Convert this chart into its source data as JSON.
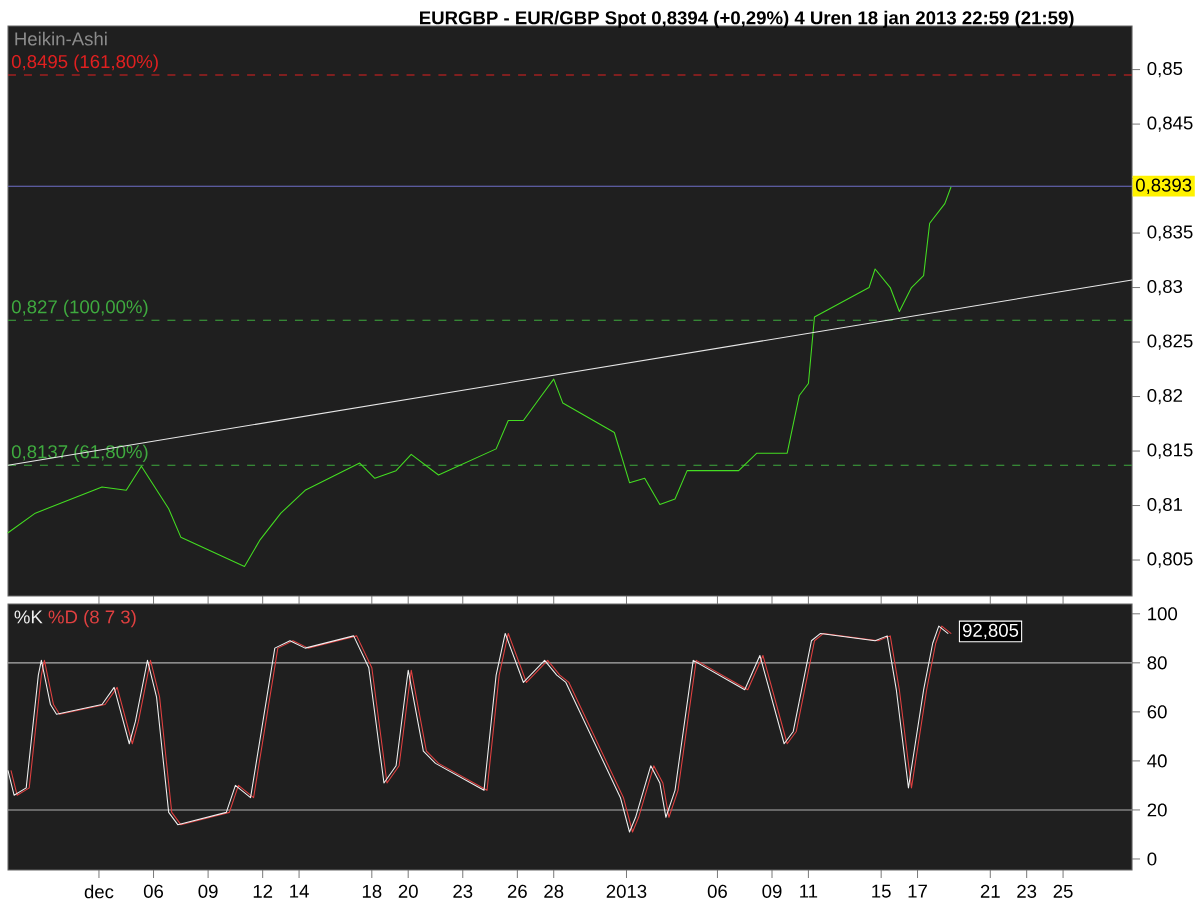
{
  "chart_data": [
    {
      "type": "line",
      "title": "EURGBP - EUR/GBP Spot    0,8394 (+0,29%)    4 Uren  18 jan 2013 22:59 (21:59)",
      "annotations": [
        "Heikin-Ashi"
      ],
      "xlim": [
        "2012-11-28T00:00",
        "2013-01-28T19:00"
      ],
      "ylim": [
        0.8017,
        0.854
      ],
      "xticks": [
        {
          "value": "2012-12-03",
          "label": null
        },
        {
          "value": "2012-12-06",
          "label": null
        },
        {
          "value": "2012-12-09",
          "label": null
        },
        {
          "value": "2012-12-12",
          "label": null
        },
        {
          "value": "2012-12-14",
          "label": null
        },
        {
          "value": "2012-12-18",
          "label": null
        },
        {
          "value": "2012-12-20",
          "label": null
        },
        {
          "value": "2012-12-23",
          "label": null
        },
        {
          "value": "2012-12-26",
          "label": null
        },
        {
          "value": "2012-12-28",
          "label": null
        },
        {
          "value": "2013-01-01",
          "label": null
        },
        {
          "value": "2013-01-06",
          "label": null
        },
        {
          "value": "2013-01-09",
          "label": null
        },
        {
          "value": "2013-01-11",
          "label": null
        },
        {
          "value": "2013-01-15",
          "label": null
        },
        {
          "value": "2013-01-17",
          "label": null
        },
        {
          "value": "2013-01-21",
          "label": null
        },
        {
          "value": "2013-01-23",
          "label": null
        },
        {
          "value": "2013-01-25",
          "label": null
        }
      ],
      "yticks": [
        {
          "value": 0.805,
          "label": "0,805"
        },
        {
          "value": 0.81,
          "label": "0,81"
        },
        {
          "value": 0.815,
          "label": "0,815"
        },
        {
          "value": 0.82,
          "label": "0,82"
        },
        {
          "value": 0.825,
          "label": "0,825"
        },
        {
          "value": 0.83,
          "label": "0,83"
        },
        {
          "value": 0.835,
          "label": "0,835"
        },
        {
          "value": 0.84,
          "label": null
        },
        {
          "value": 0.845,
          "label": "0,845"
        },
        {
          "value": 0.85,
          "label": "0,85"
        }
      ],
      "tick_labels": "y",
      "ref_lines": [
        {
          "axis": "y",
          "value": 0.8495,
          "label": "0,8495 (161,80%)",
          "color": "#e02020",
          "line_style": "dashed"
        },
        {
          "axis": "y",
          "value": 0.827,
          "label": "0,827 (100,00%)",
          "color": "#3faa3f",
          "line_style": "dashed"
        },
        {
          "axis": "y",
          "value": 0.8137,
          "label": "0,8137 (61,80%)",
          "color": "#3faa3f",
          "line_style": "dashed"
        },
        {
          "axis": "y",
          "value": 0.8393,
          "label": "0,8393",
          "color": "#6f6fc8",
          "line_style": "solid"
        }
      ],
      "series": [
        {
          "color": "#44dd22",
          "x": [
            "2012-11-28T00:00",
            "2012-11-29T12:00",
            "2012-12-03T04:00",
            "2012-12-04T12:00",
            "2012-12-05T08:00",
            "2012-12-06T20:00",
            "2012-12-07T12:00",
            "2012-12-11T00:00",
            "2012-12-11T20:00",
            "2012-12-13T00:00",
            "2012-12-14T08:00",
            "2012-12-17T08:00",
            "2012-12-18T04:00",
            "2012-12-19T08:00",
            "2012-12-20T04:00",
            "2012-12-21T16:00",
            "2012-12-24T20:00",
            "2012-12-25T12:00",
            "2012-12-26T08:00",
            "2012-12-27T08:00",
            "2012-12-28T00:00",
            "2012-12-28T12:00",
            "2012-12-31T08:00",
            "2013-01-01T04:00",
            "2013-01-02T00:00",
            "2013-01-02T20:00",
            "2013-01-03T16:00",
            "2013-01-04T08:00",
            "2013-01-07T04:00",
            "2013-01-08T04:00",
            "2013-01-09T20:00",
            "2013-01-10T12:00",
            "2013-01-11T00:00",
            "2013-01-11T08:00",
            "2013-01-14T08:00",
            "2013-01-14T16:00",
            "2013-01-15T12:00",
            "2013-01-16T00:00",
            "2013-01-16T16:00",
            "2013-01-17T08:00",
            "2013-01-17T16:00",
            "2013-01-18T12:00",
            "2013-01-18T20:00"
          ],
          "values": [
            0.8075,
            0.8093,
            0.8117,
            0.8114,
            0.8136,
            0.8097,
            0.8071,
            0.8044,
            0.8068,
            0.8093,
            0.8114,
            0.8139,
            0.8125,
            0.8132,
            0.8147,
            0.8128,
            0.8152,
            0.8178,
            0.8178,
            0.8201,
            0.8216,
            0.8194,
            0.8167,
            0.8121,
            0.8125,
            0.8101,
            0.8106,
            0.8132,
            0.8132,
            0.8148,
            0.8148,
            0.8201,
            0.8212,
            0.8273,
            0.83,
            0.8317,
            0.83,
            0.8278,
            0.83,
            0.8311,
            0.8359,
            0.8377,
            0.8392
          ]
        },
        {
          "color": "#e8e8e8",
          "x": [
            "2012-11-28T00:00",
            "2013-01-28T19:00"
          ],
          "values": [
            0.8137,
            0.8307
          ]
        }
      ]
    },
    {
      "type": "line",
      "xlim": [
        "2012-11-28T00:00",
        "2013-01-28T19:00"
      ],
      "ylim": [
        -4.5,
        104
      ],
      "xticks": [
        {
          "value": "2012-12-03",
          "label": "dec"
        },
        {
          "value": "2012-12-06",
          "label": "06"
        },
        {
          "value": "2012-12-09",
          "label": "09"
        },
        {
          "value": "2012-12-12",
          "label": "12"
        },
        {
          "value": "2012-12-14",
          "label": "14"
        },
        {
          "value": "2012-12-18",
          "label": "18"
        },
        {
          "value": "2012-12-20",
          "label": "20"
        },
        {
          "value": "2012-12-23",
          "label": "23"
        },
        {
          "value": "2012-12-26",
          "label": "26"
        },
        {
          "value": "2012-12-28",
          "label": "28"
        },
        {
          "value": "2013-01-01",
          "label": "2013"
        },
        {
          "value": "2013-01-06",
          "label": "06"
        },
        {
          "value": "2013-01-09",
          "label": "09"
        },
        {
          "value": "2013-01-11",
          "label": "11"
        },
        {
          "value": "2013-01-15",
          "label": "15"
        },
        {
          "value": "2013-01-17",
          "label": "17"
        },
        {
          "value": "2013-01-21",
          "label": "21"
        },
        {
          "value": "2013-01-23",
          "label": "23"
        },
        {
          "value": "2013-01-25",
          "label": "25"
        }
      ],
      "yticks": [
        0,
        20,
        40,
        60,
        80,
        100
      ],
      "legend": "top left",
      "annotations": [
        {
          "text": "92,805",
          "x": "2013-01-18T20:00",
          "y": 92.805
        }
      ],
      "ref_lines": [
        {
          "axis": "y",
          "value": 20,
          "color": "#b0b0b0",
          "line_style": "solid"
        },
        {
          "axis": "y",
          "value": 80,
          "color": "#b0b0b0",
          "line_style": "solid"
        }
      ],
      "series": [
        {
          "name": "%D (8 7 3)",
          "color": "#e04040",
          "x": [
            "2012-11-28T04:00",
            "2012-11-28T12:00",
            "2012-11-29T04:00",
            "2012-11-29T20:00",
            "2012-11-30T00:00",
            "2012-11-30T12:00",
            "2012-11-30T20:00",
            "2012-12-03T08:00",
            "2012-12-04T00:00",
            "2012-12-04T20:00",
            "2012-12-05T04:00",
            "2012-12-05T20:00",
            "2012-12-06T08:00",
            "2012-12-07T00:00",
            "2012-12-07T12:00",
            "2012-12-10T04:00",
            "2012-12-10T16:00",
            "2012-12-11T12:00",
            "2012-12-12T20:00",
            "2012-12-13T16:00",
            "2012-12-14T12:00",
            "2012-12-17T04:00",
            "2012-12-18T00:00",
            "2012-12-18T20:00",
            "2012-12-19T12:00",
            "2012-12-20T04:00",
            "2012-12-21T00:00",
            "2012-12-21T16:00",
            "2012-12-24T08:00",
            "2012-12-25T00:00",
            "2012-12-25T12:00",
            "2012-12-26T12:00",
            "2012-12-27T16:00",
            "2012-12-28T08:00",
            "2012-12-28T20:00",
            "2012-12-31T20:00",
            "2013-01-01T08:00",
            "2013-01-01T16:00",
            "2013-01-02T12:00",
            "2013-01-03T00:00",
            "2013-01-03T08:00",
            "2013-01-03T20:00",
            "2013-01-04T20:00",
            "2013-01-07T16:00",
            "2013-01-08T12:00",
            "2013-01-09T20:00",
            "2013-01-10T08:00",
            "2013-01-11T08:00",
            "2013-01-11T20:00",
            "2013-01-14T20:00",
            "2013-01-15T12:00",
            "2013-01-16T00:00",
            "2013-01-16T16:00",
            "2013-01-17T12:00",
            "2013-01-18T00:00",
            "2013-01-18T08:00",
            "2013-01-18T20:00"
          ],
          "values": [
            36,
            26,
            29,
            75,
            81,
            63,
            59,
            63,
            70,
            47,
            56,
            81,
            66,
            19,
            14,
            19,
            30,
            25,
            86,
            89,
            86,
            91,
            78,
            31,
            38,
            77,
            44,
            39,
            28,
            75,
            92,
            72,
            81,
            75,
            72,
            25,
            11,
            17,
            38,
            31,
            17,
            28,
            81,
            69,
            83,
            47,
            52,
            89,
            92,
            89,
            91,
            69,
            29,
            69,
            88,
            95,
            92
          ]
        },
        {
          "name": "%K",
          "color": "#f0f0f0",
          "x": [
            "2012-11-28T00:00",
            "2012-11-28T08:00",
            "2012-11-29T00:00",
            "2012-11-29T16:00",
            "2012-11-29T20:00",
            "2012-11-30T08:00",
            "2012-11-30T16:00",
            "2012-12-03T04:00",
            "2012-12-03T20:00",
            "2012-12-04T16:00",
            "2012-12-05T00:00",
            "2012-12-05T16:00",
            "2012-12-06T04:00",
            "2012-12-06T20:00",
            "2012-12-07T08:00",
            "2012-12-10T00:00",
            "2012-12-10T12:00",
            "2012-12-11T08:00",
            "2012-12-12T16:00",
            "2012-12-13T12:00",
            "2012-12-14T08:00",
            "2012-12-17T00:00",
            "2012-12-17T20:00",
            "2012-12-18T16:00",
            "2012-12-19T08:00",
            "2012-12-20T00:00",
            "2012-12-20T20:00",
            "2012-12-21T12:00",
            "2012-12-24T04:00",
            "2012-12-24T20:00",
            "2012-12-25T08:00",
            "2012-12-26T08:00",
            "2012-12-27T12:00",
            "2012-12-28T04:00",
            "2012-12-28T16:00",
            "2012-12-31T16:00",
            "2013-01-01T04:00",
            "2013-01-01T12:00",
            "2013-01-02T08:00",
            "2013-01-02T20:00",
            "2013-01-03T04:00",
            "2013-01-03T16:00",
            "2013-01-04T16:00",
            "2013-01-07T12:00",
            "2013-01-08T08:00",
            "2013-01-09T16:00",
            "2013-01-10T04:00",
            "2013-01-11T04:00",
            "2013-01-11T16:00",
            "2013-01-14T16:00",
            "2013-01-15T08:00",
            "2013-01-15T20:00",
            "2013-01-16T12:00",
            "2013-01-17T08:00",
            "2013-01-17T20:00",
            "2013-01-18T04:00",
            "2013-01-18T16:00"
          ],
          "values": [
            36,
            26,
            29,
            75,
            81,
            63,
            59,
            63,
            70,
            47,
            56,
            81,
            66,
            19,
            14,
            19,
            30,
            25,
            86,
            89,
            86,
            91,
            78,
            31,
            38,
            77,
            44,
            39,
            28,
            75,
            92,
            72,
            81,
            75,
            72,
            25,
            11,
            17,
            38,
            31,
            17,
            28,
            81,
            69,
            83,
            47,
            52,
            89,
            92,
            89,
            91,
            69,
            29,
            69,
            88,
            95,
            92
          ]
        }
      ]
    }
  ]
}
